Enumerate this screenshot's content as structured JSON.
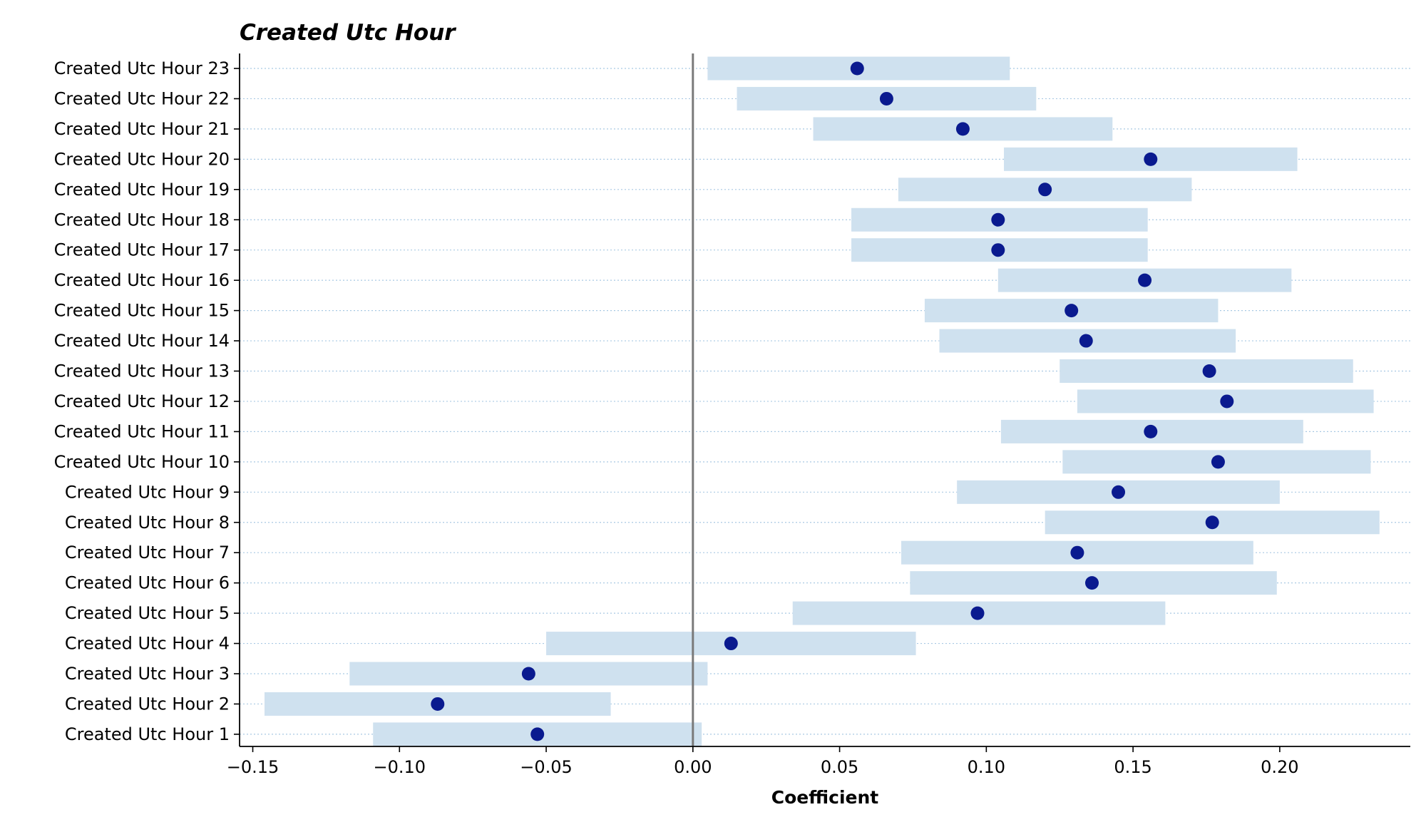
{
  "chart_data": {
    "type": "scatter",
    "title": "Created Utc Hour",
    "xlabel": "Coefficient",
    "ylabel": "",
    "xlim": [
      -0.1545,
      0.2445
    ],
    "xticks": [
      -0.15,
      -0.1,
      -0.05,
      0.0,
      0.05,
      0.1,
      0.15,
      0.2
    ],
    "xtick_labels": [
      "−0.15",
      "−0.10",
      "−0.05",
      "0.00",
      "0.05",
      "0.10",
      "0.15",
      "0.20"
    ],
    "reference_line_x": 0,
    "grid": "horizontal dotted",
    "categories": [
      "Created Utc Hour 23",
      "Created Utc Hour 22",
      "Created Utc Hour 21",
      "Created Utc Hour 20",
      "Created Utc Hour 19",
      "Created Utc Hour 18",
      "Created Utc Hour 17",
      "Created Utc Hour 16",
      "Created Utc Hour 15",
      "Created Utc Hour 14",
      "Created Utc Hour 13",
      "Created Utc Hour 12",
      "Created Utc Hour 11",
      "Created Utc Hour 10",
      "Created Utc Hour 9",
      "Created Utc Hour 8",
      "Created Utc Hour 7",
      "Created Utc Hour 6",
      "Created Utc Hour 5",
      "Created Utc Hour 4",
      "Created Utc Hour 3",
      "Created Utc Hour 2",
      "Created Utc Hour 1"
    ],
    "coefficients": [
      0.056,
      0.066,
      0.092,
      0.156,
      0.12,
      0.104,
      0.104,
      0.154,
      0.129,
      0.134,
      0.176,
      0.182,
      0.156,
      0.179,
      0.145,
      0.177,
      0.131,
      0.136,
      0.097,
      0.013,
      -0.056,
      -0.087,
      -0.053
    ],
    "ci_low": [
      0.005,
      0.015,
      0.041,
      0.106,
      0.07,
      0.054,
      0.054,
      0.104,
      0.079,
      0.084,
      0.125,
      0.131,
      0.105,
      0.126,
      0.09,
      0.12,
      0.071,
      0.074,
      0.034,
      -0.05,
      -0.117,
      -0.146,
      -0.109
    ],
    "ci_high": [
      0.108,
      0.117,
      0.143,
      0.206,
      0.17,
      0.155,
      0.155,
      0.204,
      0.179,
      0.185,
      0.225,
      0.232,
      0.208,
      0.231,
      0.2,
      0.234,
      0.191,
      0.199,
      0.161,
      0.076,
      0.005,
      -0.028,
      0.003
    ],
    "colors": {
      "point": "#0a1a8f",
      "interval": "#cfe1ef",
      "reference_line": "#7a7a7a",
      "grid": "#a9c9e3"
    }
  }
}
